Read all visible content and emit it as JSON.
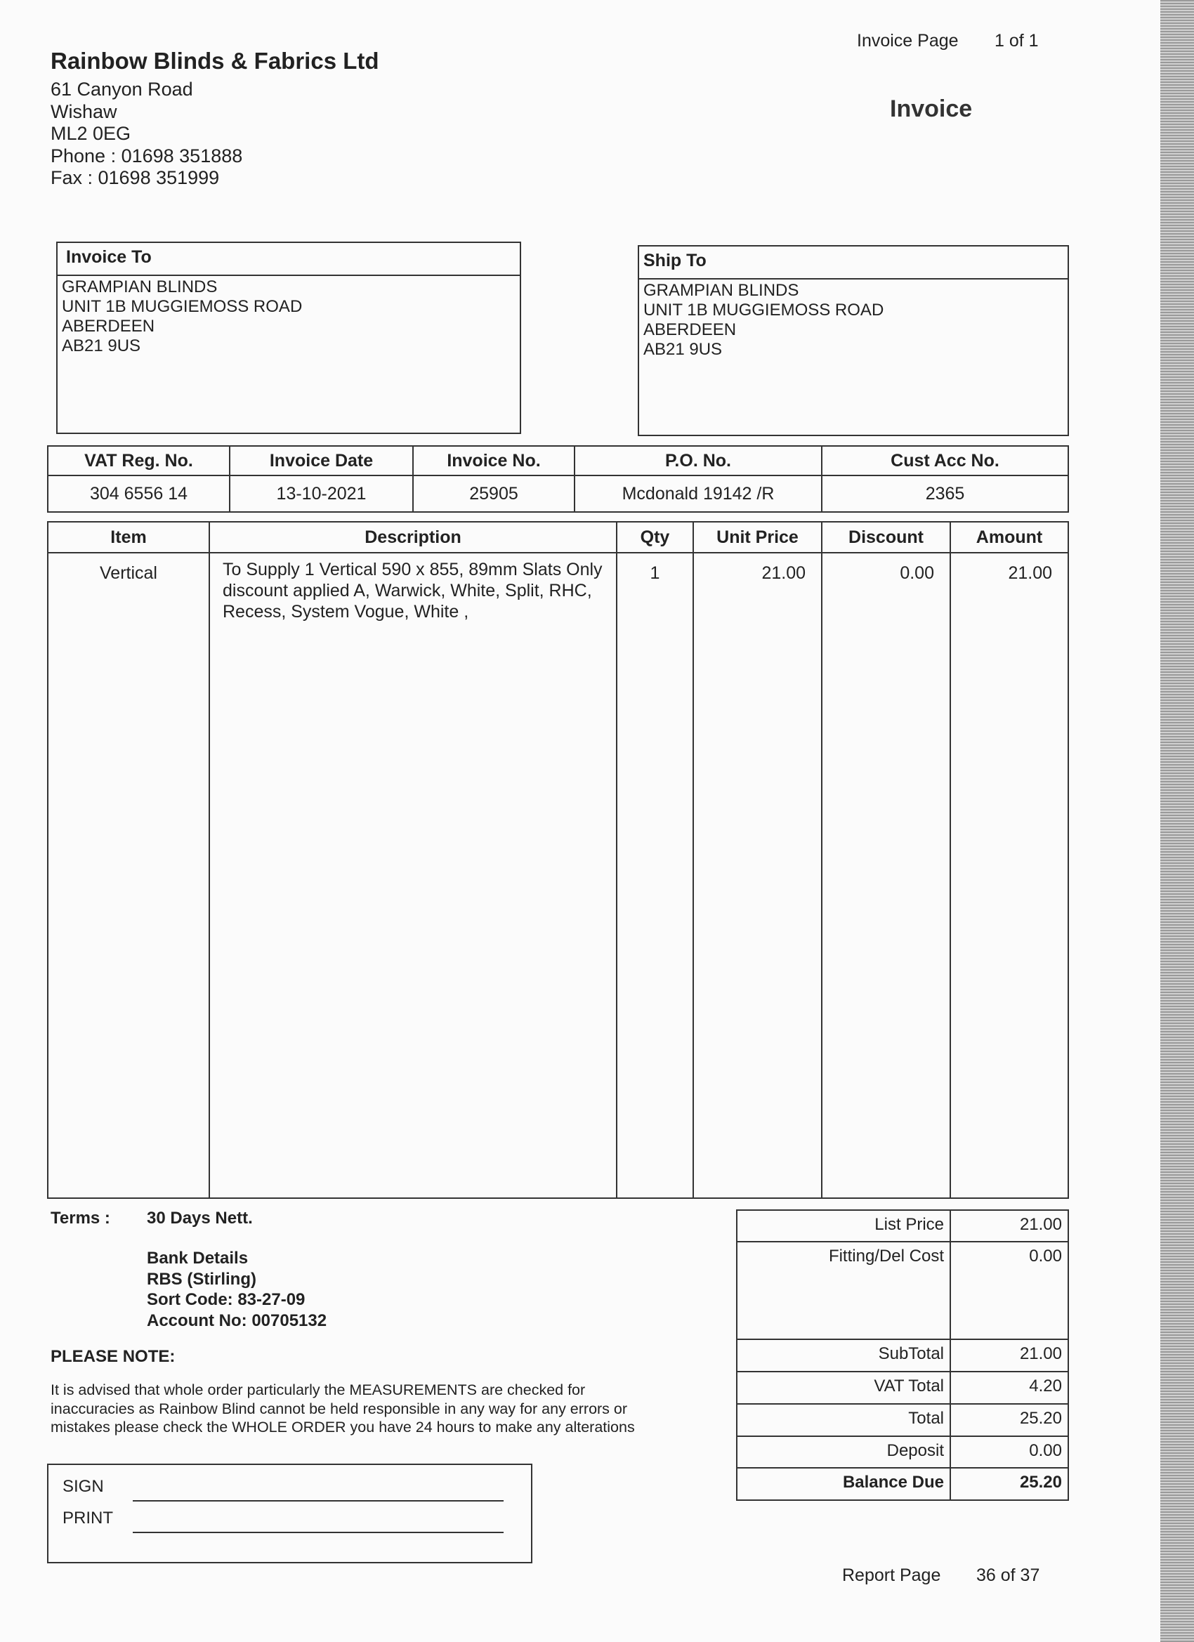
{
  "page_info": {
    "label": "Invoice  Page",
    "value": "1 of 1"
  },
  "company": {
    "name": "Rainbow Blinds & Fabrics Ltd",
    "address": [
      "61 Canyon Road",
      "Wishaw",
      "ML2 0EG",
      "Phone : 01698 351888",
      "Fax : 01698 351999"
    ]
  },
  "doc_title": "Invoice",
  "invoice_to": {
    "heading": "Invoice To",
    "lines": [
      "GRAMPIAN BLINDS",
      "UNIT 1B MUGGIEMOSS ROAD",
      "ABERDEEN",
      "AB21 9US"
    ]
  },
  "ship_to": {
    "heading": "Ship To",
    "lines": [
      "GRAMPIAN BLINDS",
      "UNIT 1B MUGGIEMOSS ROAD",
      "ABERDEEN",
      "AB21 9US"
    ]
  },
  "info": {
    "headers": [
      "VAT Reg. No.",
      "Invoice Date",
      "Invoice No.",
      "P.O. No.",
      "Cust Acc No."
    ],
    "values": [
      "304 6556 14",
      "13-10-2021",
      "25905",
      "Mcdonald 19142 /R",
      "2365"
    ]
  },
  "items": {
    "headers": [
      "Item",
      "Description",
      "Qty",
      "Unit Price",
      "Discount",
      "Amount"
    ],
    "rows": [
      {
        "item": "Vertical",
        "description": "To Supply 1 Vertical  590 x 855, 89mm Slats Only discount applied A, Warwick, White, Split, RHC, Recess, System Vogue, White ,",
        "qty": "1",
        "unit_price": "21.00",
        "discount": "0.00",
        "amount": "21.00"
      }
    ]
  },
  "terms": {
    "label": "Terms :",
    "value": "30 Days Nett."
  },
  "bank": [
    "Bank Details",
    "RBS (Stirling)",
    "Sort Code: 83-27-09",
    "Account No: 00705132"
  ],
  "please_note": {
    "heading": "PLEASE NOTE:",
    "lines": [
      "It is advised that whole order particularly the MEASUREMENTS are checked for",
      "inaccuracies as Rainbow Blind cannot be held responsible in any way for any errors or",
      "mistakes please check the WHOLE ORDER you have 24 hours to make any alterations"
    ]
  },
  "sign": {
    "sign_label": "SIGN",
    "print_label": "PRINT"
  },
  "totals": [
    {
      "label": "List Price",
      "value": "21.00"
    },
    {
      "label": "Fitting/Del Cost",
      "value": "0.00"
    },
    {
      "label": "SubTotal",
      "value": "21.00"
    },
    {
      "label": "VAT Total",
      "value": "4.20"
    },
    {
      "label": "Total",
      "value": "25.20"
    },
    {
      "label": "Deposit",
      "value": "0.00"
    },
    {
      "label": "Balance Due",
      "value": "25.20"
    }
  ],
  "report_page": {
    "label": "Report Page",
    "value": "36 of 37"
  }
}
